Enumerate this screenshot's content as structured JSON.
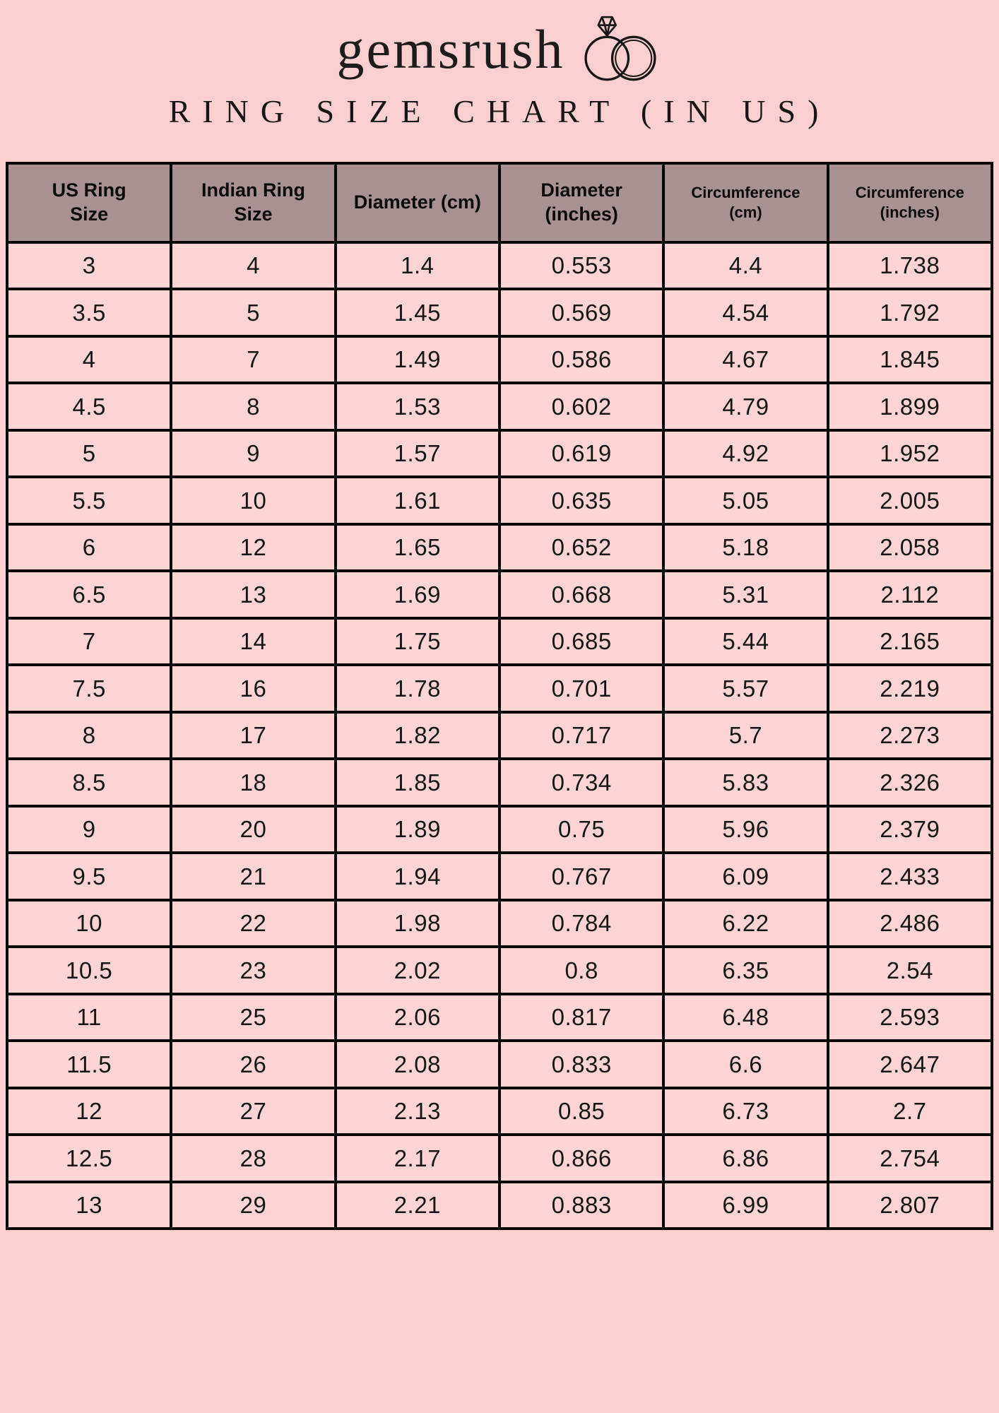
{
  "page": {
    "background_color": "#fbcfcf",
    "header_bg_color": "#a89093",
    "cell_bg_color": "#fcd4d4",
    "border_color": "#070707"
  },
  "brand": {
    "logo_text": "gemsrush",
    "rings_icon": "interlocked-wedding-rings-icon",
    "title": "RING SIZE CHART (IN US)"
  },
  "chart_data": {
    "type": "table",
    "title": "RING SIZE CHART (IN US)",
    "columns": [
      "US Ring Size",
      "Indian Ring Size",
      "Diameter (cm)",
      "Diameter (inches)",
      "Circumference (cm)",
      "Circumference (inches)"
    ],
    "rows": [
      [
        "3",
        "4",
        "1.4",
        "0.553",
        "4.4",
        "1.738"
      ],
      [
        "3.5",
        "5",
        "1.45",
        "0.569",
        "4.54",
        "1.792"
      ],
      [
        "4",
        "7",
        "1.49",
        "0.586",
        "4.67",
        "1.845"
      ],
      [
        "4.5",
        "8",
        "1.53",
        "0.602",
        "4.79",
        "1.899"
      ],
      [
        "5",
        "9",
        "1.57",
        "0.619",
        "4.92",
        "1.952"
      ],
      [
        "5.5",
        "10",
        "1.61",
        "0.635",
        "5.05",
        "2.005"
      ],
      [
        "6",
        "12",
        "1.65",
        "0.652",
        "5.18",
        "2.058"
      ],
      [
        "6.5",
        "13",
        "1.69",
        "0.668",
        "5.31",
        "2.112"
      ],
      [
        "7",
        "14",
        "1.75",
        "0.685",
        "5.44",
        "2.165"
      ],
      [
        "7.5",
        "16",
        "1.78",
        "0.701",
        "5.57",
        "2.219"
      ],
      [
        "8",
        "17",
        "1.82",
        "0.717",
        "5.7",
        "2.273"
      ],
      [
        "8.5",
        "18",
        "1.85",
        "0.734",
        "5.83",
        "2.326"
      ],
      [
        "9",
        "20",
        "1.89",
        "0.75",
        "5.96",
        "2.379"
      ],
      [
        "9.5",
        "21",
        "1.94",
        "0.767",
        "6.09",
        "2.433"
      ],
      [
        "10",
        "22",
        "1.98",
        "0.784",
        "6.22",
        "2.486"
      ],
      [
        "10.5",
        "23",
        "2.02",
        "0.8",
        "6.35",
        "2.54"
      ],
      [
        "11",
        "25",
        "2.06",
        "0.817",
        "6.48",
        "2.593"
      ],
      [
        "11.5",
        "26",
        "2.08",
        "0.833",
        "6.6",
        "2.647"
      ],
      [
        "12",
        "27",
        "2.13",
        "0.85",
        "6.73",
        "2.7"
      ],
      [
        "12.5",
        "28",
        "2.17",
        "0.866",
        "6.86",
        "2.754"
      ],
      [
        "13",
        "29",
        "2.21",
        "0.883",
        "6.99",
        "2.807"
      ]
    ]
  }
}
